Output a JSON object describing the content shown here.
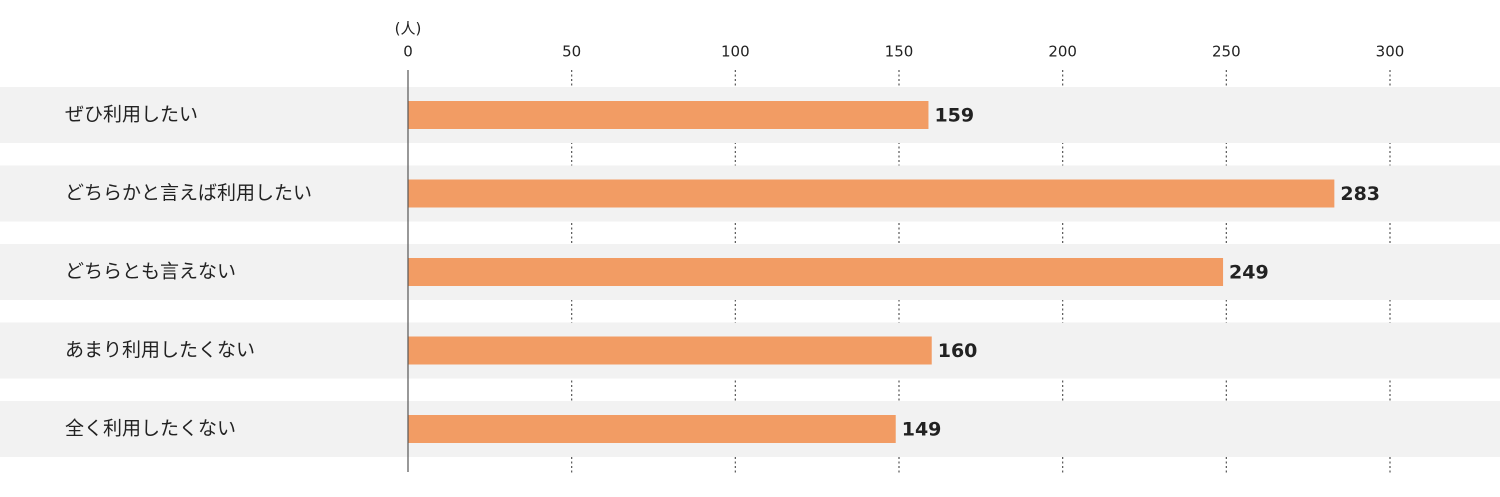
{
  "chart_data": {
    "type": "bar",
    "orientation": "horizontal",
    "unit_label": "(人)",
    "categories": [
      "ぜひ利用したい",
      "どちらかと言えば利用したい",
      "どちらとも言えない",
      "あまり利用したくない",
      "全く利用したくない"
    ],
    "values": [
      159,
      283,
      249,
      160,
      149
    ],
    "color": "#f29c64",
    "xlim": [
      0,
      300
    ],
    "xticks": [
      0,
      50,
      100,
      150,
      200,
      250,
      300
    ],
    "grid": true
  }
}
